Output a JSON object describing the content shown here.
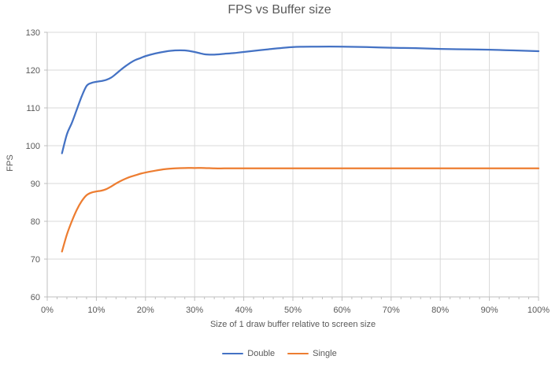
{
  "chart_data": {
    "type": "line",
    "title": "FPS vs Buffer size",
    "xlabel": "Size of 1 draw buffer relative to screen size",
    "ylabel": "FPS",
    "xlim": [
      0,
      100
    ],
    "ylim": [
      60,
      130
    ],
    "grid": true,
    "legend_position": "bottom",
    "x_tick_labels": [
      "0%",
      "10%",
      "20%",
      "30%",
      "40%",
      "50%",
      "60%",
      "70%",
      "80%",
      "90%",
      "100%"
    ],
    "x_tick_values": [
      0,
      10,
      20,
      30,
      40,
      50,
      60,
      70,
      80,
      90,
      100
    ],
    "x_minor_step": 2,
    "y_tick_labels": [
      "60",
      "70",
      "80",
      "90",
      "100",
      "110",
      "120",
      "130"
    ],
    "y_tick_values": [
      60,
      70,
      80,
      90,
      100,
      110,
      120,
      130
    ],
    "x": [
      3,
      4,
      5,
      6,
      7,
      8,
      9,
      10,
      11,
      12,
      13,
      14,
      15,
      16,
      17,
      18,
      19,
      20,
      22,
      24,
      26,
      28,
      30,
      32,
      34,
      36,
      38,
      40,
      45,
      50,
      55,
      60,
      65,
      70,
      75,
      80,
      85,
      90,
      95,
      100
    ],
    "series": [
      {
        "name": "Double",
        "color": "#4472C4",
        "values": [
          98,
          103,
          106,
          109.5,
          113,
          115.8,
          116.6,
          116.9,
          117.1,
          117.4,
          118,
          119,
          120.1,
          121.1,
          122,
          122.7,
          123.2,
          123.7,
          124.4,
          124.9,
          125.2,
          125.2,
          124.8,
          124.2,
          124.1,
          124.3,
          124.5,
          124.8,
          125.5,
          126.1,
          126.2,
          126.2,
          126.1,
          125.9,
          125.8,
          125.6,
          125.5,
          125.4,
          125.2,
          125
        ]
      },
      {
        "name": "Single",
        "color": "#ED7D31",
        "values": [
          72,
          76.5,
          80,
          83,
          85.3,
          86.9,
          87.6,
          87.9,
          88.1,
          88.5,
          89.2,
          90,
          90.7,
          91.3,
          91.8,
          92.2,
          92.6,
          92.9,
          93.4,
          93.8,
          94,
          94.1,
          94.1,
          94.1,
          94,
          94,
          94,
          94,
          94,
          94,
          94,
          94,
          94,
          94,
          94,
          94,
          94,
          94,
          94,
          94
        ]
      }
    ]
  },
  "colors": {
    "gridline": "#D9D9D9",
    "axis": "#BFBFBF",
    "text": "#595959",
    "background": "#FFFFFF"
  }
}
